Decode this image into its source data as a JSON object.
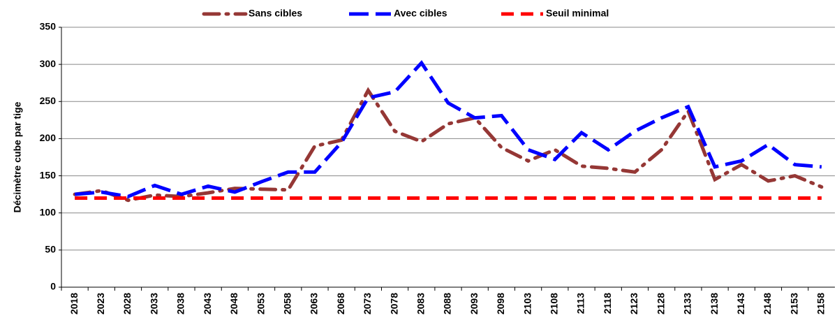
{
  "chart_data": {
    "type": "line",
    "y_label": "Décimètre cube par tige",
    "categories": [
      "2018",
      "2023",
      "2028",
      "2033",
      "2038",
      "2043",
      "2048",
      "2053",
      "2058",
      "2063",
      "2068",
      "2073",
      "2078",
      "2083",
      "2088",
      "2093",
      "2098",
      "2103",
      "2108",
      "2113",
      "2118",
      "2123",
      "2128",
      "2133",
      "2138",
      "2143",
      "2148",
      "2153",
      "2158"
    ],
    "series": [
      {
        "name": "Sans cibles",
        "color": "#953735",
        "style": "dash-dot",
        "values": [
          125,
          130,
          117,
          124,
          122,
          127,
          133,
          132,
          131,
          190,
          198,
          265,
          210,
          196,
          220,
          228,
          188,
          170,
          185,
          163,
          160,
          155,
          185,
          237,
          145,
          165,
          143,
          150,
          135
        ]
      },
      {
        "name": "Avec cibles",
        "color": "#0000ff",
        "style": "long-dash",
        "values": [
          125,
          128,
          122,
          137,
          125,
          136,
          128,
          142,
          155,
          155,
          195,
          255,
          263,
          302,
          248,
          228,
          231,
          185,
          172,
          208,
          185,
          210,
          228,
          243,
          162,
          170,
          192,
          165,
          162
        ]
      },
      {
        "name": "Seuil minimal",
        "color": "#ff0000",
        "style": "dash",
        "values": [
          120,
          120,
          120,
          120,
          120,
          120,
          120,
          120,
          120,
          120,
          120,
          120,
          120,
          120,
          120,
          120,
          120,
          120,
          120,
          120,
          120,
          120,
          120,
          120,
          120,
          120,
          120,
          120,
          120
        ]
      }
    ],
    "ylim": [
      0,
      350
    ],
    "yticks": [
      0,
      50,
      100,
      150,
      200,
      250,
      300,
      350
    ],
    "grid": true,
    "legend": "top"
  }
}
